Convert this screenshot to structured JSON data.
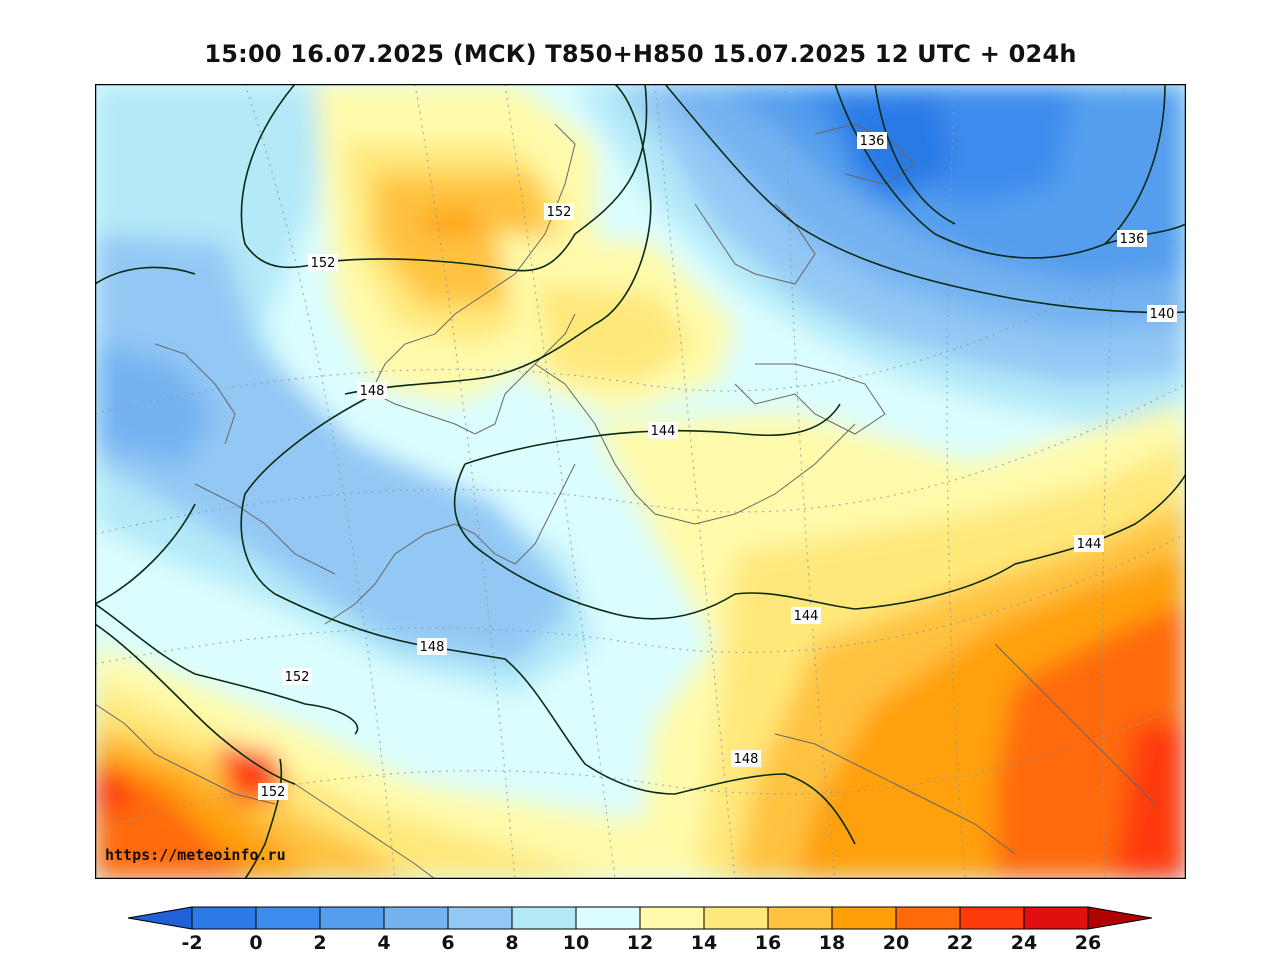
{
  "title": "15:00 16.07.2025 (МСК) T850+H850 15.07.2025 12 UTC + 024h",
  "watermark": "https://meteoinfo.ru",
  "contour_labels": [
    {
      "id": "lbl-136-a",
      "text": "136"
    },
    {
      "id": "lbl-136-b",
      "text": "136"
    },
    {
      "id": "lbl-140",
      "text": "140"
    },
    {
      "id": "lbl-152-a",
      "text": "152"
    },
    {
      "id": "lbl-152-b",
      "text": "152"
    },
    {
      "id": "lbl-148-a",
      "text": "148"
    },
    {
      "id": "lbl-144-a",
      "text": "144"
    },
    {
      "id": "lbl-144-b",
      "text": "144"
    },
    {
      "id": "lbl-144-c",
      "text": "144"
    },
    {
      "id": "lbl-148-b",
      "text": "148"
    },
    {
      "id": "lbl-152-c",
      "text": "152"
    },
    {
      "id": "lbl-148-c",
      "text": "148"
    },
    {
      "id": "lbl-152-d",
      "text": "152"
    }
  ],
  "colorbar": {
    "ticks": [
      "-2",
      "0",
      "2",
      "4",
      "6",
      "8",
      "10",
      "12",
      "14",
      "16",
      "18",
      "20",
      "22",
      "24",
      "26"
    ],
    "colors": [
      "#2b7ae6",
      "#3d8ced",
      "#559eee",
      "#74b2f0",
      "#93c8f5",
      "#b4e9f8",
      "#dbfdfe",
      "#fffaaa",
      "#ffe87a",
      "#ffc340",
      "#ffa007",
      "#ff6a0a",
      "#ff3a0a",
      "#e01010"
    ],
    "low_color": "#2060d8",
    "high_color": "#b00000"
  }
}
